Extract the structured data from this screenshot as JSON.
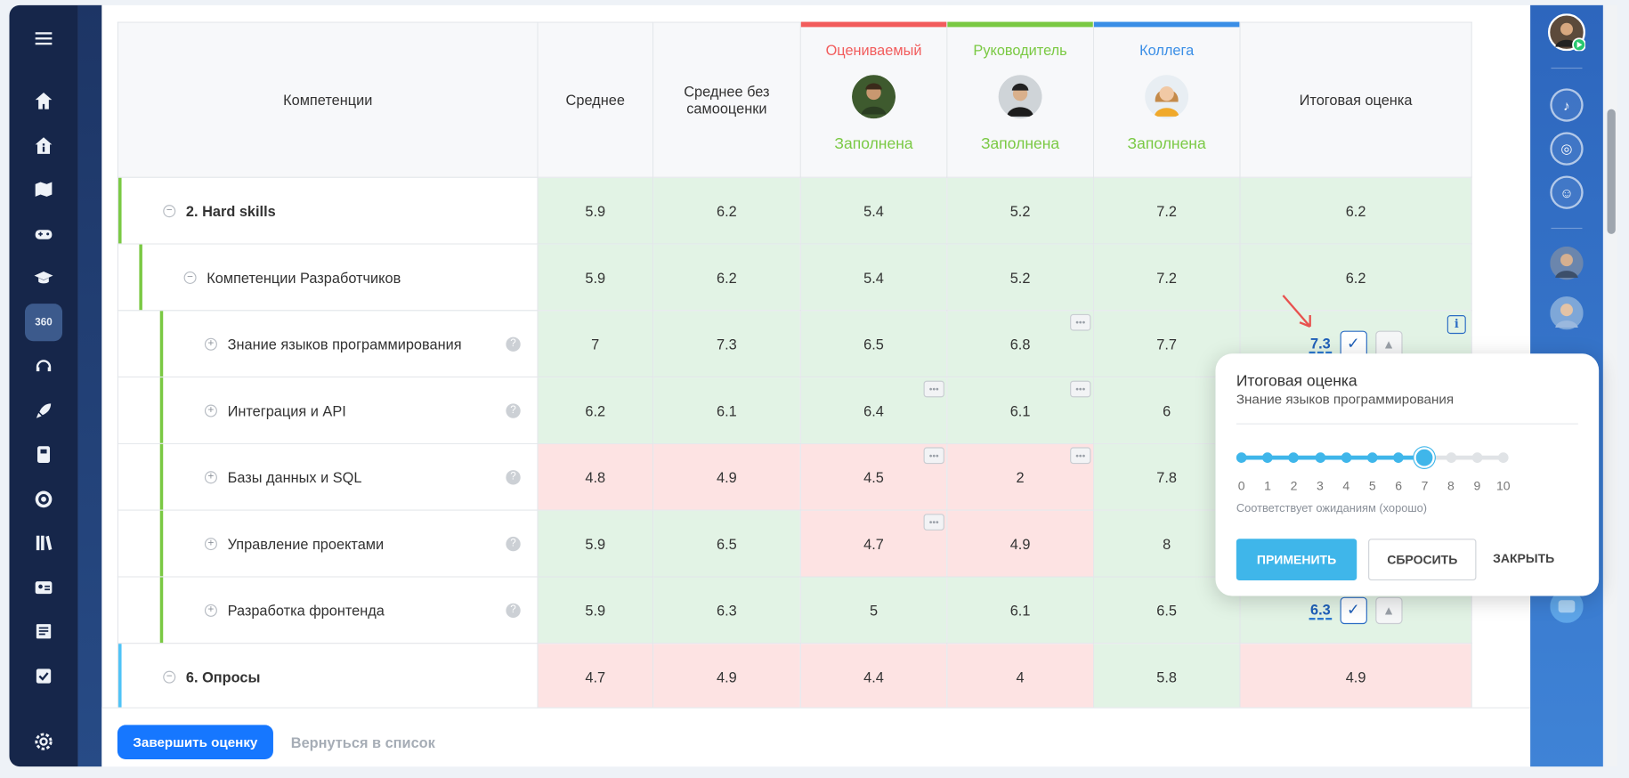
{
  "nav": {
    "menu_icon": "hamburger-icon",
    "items": [
      "home-icon",
      "info-icon",
      "map-icon",
      "gamepad-icon",
      "graduation-cap-icon",
      "360-icon",
      "headset-icon",
      "rocket-icon",
      "book-icon",
      "target-icon",
      "library-icon",
      "id-card-icon",
      "newspaper-icon",
      "checkbox-icon"
    ],
    "active_label": "360",
    "settings_icon": "gear-icon"
  },
  "table": {
    "headers": {
      "competencies": "Компетенции",
      "average": "Среднее",
      "average_no_self": "Среднее без самооценки",
      "final": "Итоговая оценка"
    },
    "people": [
      {
        "role": "Оцениваемый",
        "status": "Заполнена",
        "color": "#f25c5c"
      },
      {
        "role": "Руководитель",
        "status": "Заполнена",
        "color": "#7ac943"
      },
      {
        "role": "Коллега",
        "status": "Заполнена",
        "color": "#3a8ee6"
      }
    ],
    "rows": [
      {
        "name": "2. Hard skills",
        "level": 1,
        "toggle": "−",
        "values": [
          "5.9",
          "6.2",
          "5.4",
          "5.2",
          "7.2",
          "6.2"
        ]
      },
      {
        "name": "Компетенции Разработчиков",
        "level": 2,
        "toggle": "−",
        "values": [
          "5.9",
          "6.2",
          "5.4",
          "5.2",
          "7.2",
          "6.2"
        ]
      },
      {
        "name": "Знание языков программирования",
        "level": 3,
        "toggle": "+",
        "values": [
          "7",
          "7.3",
          "6.5",
          "6.8",
          "7.7",
          "7.3"
        ]
      },
      {
        "name": "Интеграция и API",
        "level": 3,
        "toggle": "+",
        "values": [
          "6.2",
          "6.1",
          "6.4",
          "6.1",
          "6",
          ""
        ]
      },
      {
        "name": "Базы данных и SQL",
        "level": 3,
        "toggle": "+",
        "values": [
          "4.8",
          "4.9",
          "4.5",
          "2",
          "7.8",
          ""
        ]
      },
      {
        "name": "Управление проектами",
        "level": 3,
        "toggle": "+",
        "values": [
          "5.9",
          "6.5",
          "4.7",
          "4.9",
          "8",
          ""
        ]
      },
      {
        "name": "Разработка фронтенда",
        "level": 3,
        "toggle": "+",
        "values": [
          "5.9",
          "6.3",
          "5",
          "6.1",
          "6.5",
          "6.3"
        ]
      },
      {
        "name": "6. Опросы",
        "level": 1,
        "toggle": "−",
        "values": [
          "4.7",
          "4.9",
          "4.4",
          "4",
          "5.8",
          "4.9"
        ]
      }
    ],
    "help_glyph": "?",
    "info_glyph": "i"
  },
  "popup": {
    "title": "Итоговая оценка",
    "subtitle": "Знание языков программирования",
    "scale": [
      "0",
      "1",
      "2",
      "3",
      "4",
      "5",
      "6",
      "7",
      "8",
      "9",
      "10"
    ],
    "value": 7,
    "description": "Соответствует ожиданиям (хорошо)",
    "apply": "ПРИМЕНИТЬ",
    "reset": "СБРОСИТЬ",
    "close": "ЗАКРЫТЬ"
  },
  "footer": {
    "finish": "Завершить оценку",
    "back": "Вернуться в список"
  },
  "colors": {
    "good": "#e2f3e5",
    "bad": "#fde3e3",
    "accent": "#3fb6ea",
    "primary": "#1677ff"
  }
}
